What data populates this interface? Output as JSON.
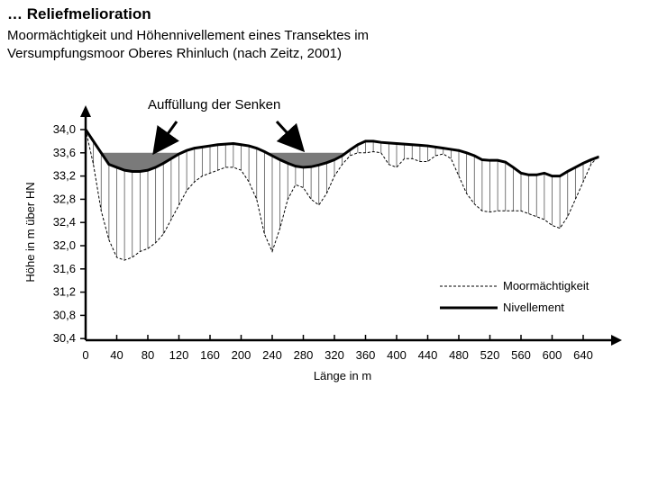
{
  "header": {
    "title": "… Reliefmelioration",
    "subtitle_line1": "Moormächtigkeit und Höhennivellement eines Transektes im",
    "subtitle_line2": "Versumpfungsmoor Oberes Rhinluch (nach Zeitz, 2001)"
  },
  "annotation": "Auffüllung der Senken",
  "chart_data": {
    "type": "line",
    "xlabel": "Länge in m",
    "ylabel": "Höhe in m über HN",
    "xlim": [
      0,
      660
    ],
    "ylim": [
      30.4,
      34.2
    ],
    "xticks": [
      "0",
      "40",
      "80",
      "120",
      "160",
      "200",
      "240",
      "280",
      "320",
      "360",
      "400",
      "440",
      "480",
      "520",
      "560",
      "600",
      "640"
    ],
    "yticks": [
      "34,0",
      "33,6",
      "33,2",
      "32,8",
      "32,4",
      "32,0",
      "31,6",
      "31,2",
      "30,8",
      "30,4"
    ],
    "fill_level": 33.6,
    "legend_position": "bottom-right",
    "series": [
      {
        "name": "Nivellement",
        "style": "solid",
        "x": [
          0,
          10,
          20,
          30,
          40,
          50,
          60,
          70,
          80,
          90,
          100,
          110,
          120,
          130,
          140,
          150,
          160,
          170,
          180,
          190,
          200,
          210,
          220,
          230,
          240,
          250,
          260,
          270,
          280,
          290,
          300,
          310,
          320,
          330,
          340,
          350,
          360,
          370,
          380,
          390,
          400,
          410,
          420,
          430,
          440,
          450,
          460,
          470,
          480,
          490,
          500,
          510,
          520,
          530,
          540,
          550,
          560,
          570,
          580,
          590,
          600,
          610,
          620,
          630,
          640,
          650,
          660
        ],
        "values": [
          34.0,
          33.8,
          33.6,
          33.4,
          33.35,
          33.3,
          33.28,
          33.28,
          33.3,
          33.35,
          33.42,
          33.5,
          33.58,
          33.64,
          33.68,
          33.7,
          33.72,
          33.74,
          33.75,
          33.76,
          33.74,
          33.72,
          33.68,
          33.62,
          33.55,
          33.48,
          33.42,
          33.37,
          33.35,
          33.36,
          33.39,
          33.43,
          33.48,
          33.55,
          33.65,
          33.74,
          33.8,
          33.8,
          33.78,
          33.77,
          33.76,
          33.75,
          33.74,
          33.73,
          33.72,
          33.7,
          33.68,
          33.66,
          33.64,
          33.6,
          33.55,
          33.48,
          33.47,
          33.47,
          33.44,
          33.35,
          33.25,
          33.22,
          33.22,
          33.25,
          33.2,
          33.2,
          33.28,
          33.35,
          33.42,
          33.48,
          33.53
        ]
      },
      {
        "name": "Moormächtigkeit",
        "style": "dashed",
        "x": [
          0,
          10,
          20,
          30,
          40,
          50,
          60,
          70,
          80,
          90,
          100,
          110,
          120,
          130,
          140,
          150,
          160,
          170,
          180,
          190,
          200,
          210,
          220,
          230,
          240,
          250,
          260,
          270,
          280,
          290,
          300,
          310,
          320,
          330,
          340,
          350,
          360,
          370,
          380,
          390,
          400,
          410,
          420,
          430,
          440,
          450,
          460,
          470,
          480,
          490,
          500,
          510,
          520,
          530,
          540,
          550,
          560,
          570,
          580,
          590,
          600,
          610,
          620,
          630,
          640,
          650,
          660
        ],
        "values": [
          34.0,
          33.4,
          32.6,
          32.1,
          31.8,
          31.75,
          31.8,
          31.9,
          31.95,
          32.05,
          32.2,
          32.45,
          32.7,
          32.95,
          33.1,
          33.2,
          33.25,
          33.3,
          33.35,
          33.35,
          33.3,
          33.1,
          32.8,
          32.2,
          31.9,
          32.3,
          32.8,
          33.05,
          33.0,
          32.8,
          32.7,
          32.9,
          33.2,
          33.4,
          33.55,
          33.6,
          33.6,
          33.62,
          33.6,
          33.4,
          33.35,
          33.5,
          33.5,
          33.45,
          33.45,
          33.55,
          33.58,
          33.5,
          33.2,
          32.9,
          32.72,
          32.6,
          32.58,
          32.6,
          32.6,
          32.6,
          32.6,
          32.55,
          32.5,
          32.45,
          32.35,
          32.3,
          32.5,
          32.8,
          33.1,
          33.4,
          33.55
        ]
      }
    ]
  }
}
